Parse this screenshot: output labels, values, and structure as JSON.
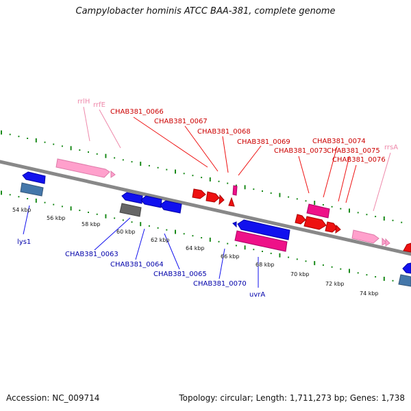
{
  "title": "Campylobacter hominis ATCC BAA-381, complete genome",
  "footer": {
    "accession": "Accession: NC_009714",
    "summary": "Topology: circular; Length: 1,711,273 bp; Genes: 1,738"
  },
  "colors": {
    "backbone": "#888888",
    "tick": "#1a8a1a",
    "cds_forward": "#ee1111",
    "cds_reverse": "#1111ee",
    "rrna": "#ffa0cc",
    "trna": "#ee1188",
    "misc": "#666666",
    "steel": "#4477aa",
    "label_forward": "#cc0000",
    "label_reverse": "#0000aa",
    "label_rna": "#ee88aa"
  },
  "scale_labels": [
    "54 kbp",
    "56 kbp",
    "58 kbp",
    "60 kbp",
    "62 kbp",
    "64 kbp",
    "66 kbp",
    "68 kbp",
    "70 kbp",
    "72 kbp",
    "74 kbp"
  ],
  "forward_labels": [
    "rrlH",
    "rrfE",
    "CHAB381_0066",
    "CHAB381_0067",
    "CHAB381_0068",
    "CHAB381_0069",
    "CHAB381_0073",
    "CHAB381_0074",
    "CHAB381_0075",
    "CHAB381_0076",
    "rrsA"
  ],
  "reverse_labels": [
    "lys1",
    "CHAB381_0063",
    "CHAB381_0064",
    "CHAB381_0065",
    "CHAB381_0070",
    "uvrA"
  ]
}
